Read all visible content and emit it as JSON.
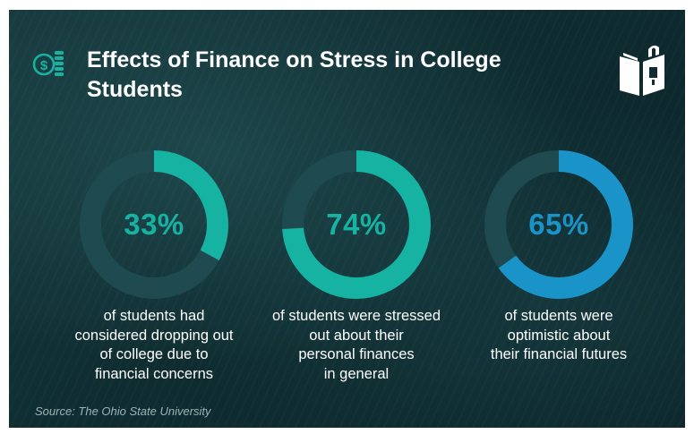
{
  "header": {
    "title": "Effects of Finance on Stress in College Students",
    "coins_icon": "coins-dollar-icon",
    "logo_icon": "open-book-lock-icon"
  },
  "colors": {
    "teal": "#16b3a3",
    "blue": "#1a93c9",
    "track": "#1f4a4f",
    "text": "#ffffff",
    "source_text": "#9fb3b5"
  },
  "stats": [
    {
      "value_label": "33%",
      "caption_lines": [
        "of students had",
        "considered dropping out",
        "of college due to",
        "financial concerns"
      ]
    },
    {
      "value_label": "74%",
      "caption_lines": [
        "of students were stressed",
        "out about their",
        "personal finances",
        "in general"
      ]
    },
    {
      "value_label": "65%",
      "caption_lines": [
        "of students were",
        "optimistic about",
        "their financial futures"
      ]
    }
  ],
  "chart_data": {
    "type": "pie",
    "variant": "donut",
    "charts": [
      {
        "value": 33,
        "max": 100,
        "label": "33%",
        "color": "#16b3a3"
      },
      {
        "value": 74,
        "max": 100,
        "label": "74%",
        "color": "#16b3a3"
      },
      {
        "value": 65,
        "max": 100,
        "label": "65%",
        "color": "#1a93c9"
      }
    ]
  },
  "source": "Source: The Ohio State University"
}
